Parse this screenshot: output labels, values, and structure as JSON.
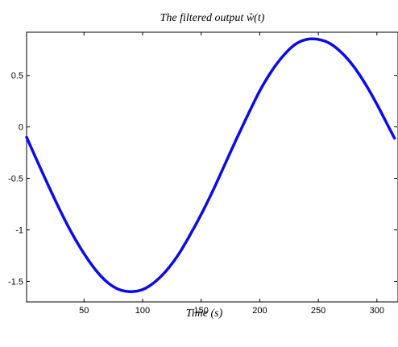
{
  "chart_data": {
    "type": "line",
    "title": "The filtered output ŵ(t)",
    "xlabel": "Time (s)",
    "ylabel": "",
    "xlim": [
      1,
      318
    ],
    "ylim": [
      -1.7,
      0.92
    ],
    "xticks": [
      50,
      100,
      150,
      200,
      250,
      300
    ],
    "yticks": [
      -1.5,
      -1,
      -0.5,
      0,
      0.5
    ],
    "xtick_labels": [
      "50",
      "100",
      "150",
      "200",
      "250",
      "300"
    ],
    "ytick_labels": [
      "-1.5",
      "-1",
      "-0.5",
      "0",
      "0.5"
    ],
    "grid": false,
    "series": [
      {
        "name": "",
        "color": "#0a0af0",
        "x": [
          1,
          10,
          20,
          30,
          40,
          50,
          60,
          70,
          80,
          90,
          100,
          110,
          120,
          130,
          140,
          150,
          160,
          170,
          180,
          190,
          200,
          210,
          220,
          230,
          240,
          250,
          260,
          270,
          280,
          290,
          300,
          310,
          315
        ],
        "y": [
          -0.1,
          -0.33,
          -0.58,
          -0.82,
          -1.04,
          -1.23,
          -1.39,
          -1.51,
          -1.58,
          -1.6,
          -1.58,
          -1.51,
          -1.4,
          -1.25,
          -1.06,
          -0.85,
          -0.62,
          -0.37,
          -0.12,
          0.12,
          0.35,
          0.54,
          0.69,
          0.8,
          0.85,
          0.85,
          0.81,
          0.72,
          0.59,
          0.42,
          0.22,
          0.0,
          -0.11
        ]
      }
    ]
  }
}
